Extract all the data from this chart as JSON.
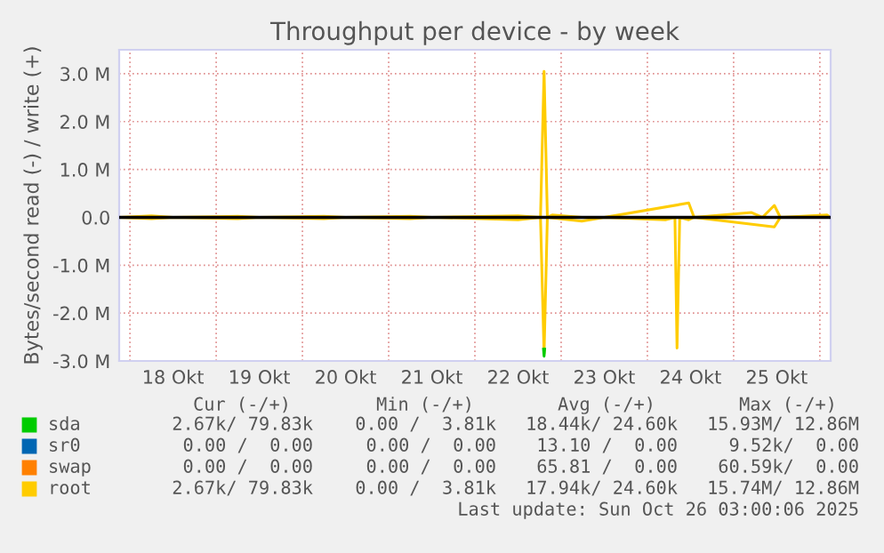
{
  "chart_data": {
    "type": "line",
    "title": "Throughput per device - by week",
    "ylabel": "Bytes/second read (-) / write (+)",
    "xlim": [
      "2025-10-17T21:00",
      "2025-10-26T03:00"
    ],
    "xticks": [
      {
        "value": "2025-10-18T00:00",
        "label": null
      },
      {
        "value": "2025-10-18T12:00",
        "label": "18 Okt"
      },
      {
        "value": "2025-10-19T00:00",
        "label": null
      },
      {
        "value": "2025-10-19T12:00",
        "label": "19 Okt"
      },
      {
        "value": "2025-10-20T00:00",
        "label": null
      },
      {
        "value": "2025-10-20T12:00",
        "label": "20 Okt"
      },
      {
        "value": "2025-10-21T00:00",
        "label": null
      },
      {
        "value": "2025-10-21T12:00",
        "label": "21 Okt"
      },
      {
        "value": "2025-10-22T00:00",
        "label": null
      },
      {
        "value": "2025-10-22T12:00",
        "label": "22 Okt"
      },
      {
        "value": "2025-10-23T00:00",
        "label": null
      },
      {
        "value": "2025-10-23T12:00",
        "label": "23 Okt"
      },
      {
        "value": "2025-10-24T00:00",
        "label": null
      },
      {
        "value": "2025-10-24T12:00",
        "label": "24 Okt"
      },
      {
        "value": "2025-10-25T00:00",
        "label": null
      },
      {
        "value": "2025-10-25T12:00",
        "label": "25 Okt"
      },
      {
        "value": "2025-10-26T00:00",
        "label": null
      }
    ],
    "ylim": [
      -3.0,
      3.5
    ],
    "yticks": [
      {
        "value": -3,
        "label": "-3.0 M"
      },
      {
        "value": -2,
        "label": "-2.0 M"
      },
      {
        "value": -1,
        "label": "-1.0 M"
      },
      {
        "value": 0,
        "label": "0.0"
      },
      {
        "value": 1,
        "label": "1.0 M"
      },
      {
        "value": 2,
        "label": "2.0 M"
      },
      {
        "value": 3,
        "label": "3.0 M"
      }
    ],
    "grid": true,
    "legend": "bottom",
    "ref_lines": [
      {
        "axis": "y",
        "value": 0,
        "label": null,
        "color": "#000000"
      }
    ],
    "series": [
      {
        "name": "sda",
        "color": "#00cc00",
        "x": [
          "2025-10-22T19:05",
          "2025-10-22T19:15",
          "2025-10-22T19:25"
        ],
        "values": [
          -2.75,
          -2.9,
          -2.75
        ]
      },
      {
        "name": "sr0",
        "color": "#0066b3"
      },
      {
        "name": "swap",
        "color": "#ff8000"
      },
      {
        "name": "root",
        "color": "#ffcc00",
        "x": [
          "2025-10-17T21:00",
          "2025-10-18T06:00",
          "2025-10-18T12:00",
          "2025-10-19T06:00",
          "2025-10-19T12:00",
          "2025-10-20T06:00",
          "2025-10-20T12:00",
          "2025-10-21T06:00",
          "2025-10-21T12:00",
          "2025-10-22T12:00",
          "2025-10-22T18:15",
          "2025-10-22T19:15",
          "2025-10-22T20:10",
          "2025-10-22T21:30",
          "2025-10-23T05:45",
          "2025-10-23T12:00",
          "2025-10-24T11:30",
          "2025-10-24T13:00",
          "2025-10-25T05:00",
          "2025-10-25T08:00",
          "2025-10-25T11:20",
          "2025-10-25T13:00",
          "2025-10-26T02:00",
          "2025-10-26T03:00"
        ],
        "values": [
          0,
          0.03,
          0,
          0.02,
          0,
          0.02,
          0,
          0.02,
          0,
          0.03,
          0,
          3.05,
          0,
          0.05,
          0,
          0,
          0.3,
          0,
          0.1,
          0,
          0.25,
          0,
          0.05,
          0
        ]
      },
      {
        "color": "#ffcc00",
        "x": [
          "2025-10-17T21:00",
          "2025-10-18T06:00",
          "2025-10-18T12:00",
          "2025-10-19T06:00",
          "2025-10-19T12:00",
          "2025-10-20T06:00",
          "2025-10-20T12:00",
          "2025-10-21T06:00",
          "2025-10-21T12:00",
          "2025-10-22T12:00",
          "2025-10-22T18:15",
          "2025-10-22T19:15",
          "2025-10-22T20:10",
          "2025-10-23T05:45",
          "2025-10-23T12:00",
          "2025-10-24T05:00",
          "2025-10-24T07:40",
          "2025-10-24T08:15",
          "2025-10-24T09:00",
          "2025-10-24T11:30",
          "2025-10-24T13:00",
          "2025-10-25T11:20",
          "2025-10-25T13:00",
          "2025-10-26T03:00"
        ],
        "values": [
          0,
          -0.03,
          0,
          -0.03,
          0,
          -0.03,
          0,
          -0.03,
          0,
          -0.05,
          0,
          -2.85,
          0,
          -0.08,
          0,
          -0.05,
          0,
          -2.73,
          0,
          -0.05,
          0,
          -0.2,
          0,
          0
        ]
      }
    ],
    "annotations": [
      "Cur (-/+)",
      "Min (-/+)",
      "Avg (-/+)",
      "Max (-/+)",
      "2.67k/ 79.83k",
      "0.00 /  3.81k",
      "18.44k/ 24.60k",
      "15.93M/ 12.86M",
      "0.00 /  0.00",
      "0.00 /  0.00",
      "13.10 /  0.00",
      "9.52k/  0.00",
      "0.00 /  0.00",
      "0.00 /  0.00",
      "65.81 /  0.00",
      "60.59k/  0.00",
      "2.67k/ 79.83k",
      "0.00 /  3.81k",
      "17.94k/ 24.60k",
      "15.74M/ 12.86M",
      "Last update: Sun Oct 26 03:00:06 2025"
    ]
  }
}
